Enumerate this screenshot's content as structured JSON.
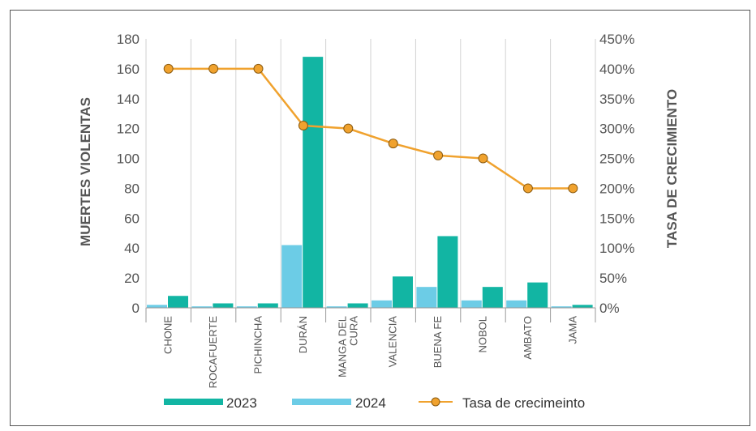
{
  "chart_data": {
    "type": "bar",
    "categories": [
      "CHONE",
      "ROCAFUERTE",
      "PICHINCHA",
      "DURÁN",
      "MANGA DEL CURA",
      "VALENCIA",
      "BUENA FE",
      "NOBOL",
      "AMBATO",
      "JAMA"
    ],
    "category_lines": [
      [
        "CHONE"
      ],
      [
        "ROCAFUERTE"
      ],
      [
        "PICHINCHA"
      ],
      [
        "DURÁN"
      ],
      [
        "MANGA DEL",
        "CURA"
      ],
      [
        "VALENCIA"
      ],
      [
        "BUENA FE"
      ],
      [
        "NOBOL"
      ],
      [
        "AMBATO"
      ],
      [
        "JAMA"
      ]
    ],
    "series": [
      {
        "name": "2023",
        "type": "bar",
        "axis": "left",
        "color": "#12b5a3",
        "values": [
          8,
          3,
          3,
          168,
          3,
          21,
          48,
          14,
          17,
          2
        ]
      },
      {
        "name": "2024",
        "type": "bar",
        "axis": "left",
        "color": "#6ccce6",
        "values": [
          2,
          1,
          1,
          42,
          1,
          5,
          14,
          5,
          5,
          1
        ]
      },
      {
        "name": "Tasa de crecimeinto",
        "type": "line",
        "axis": "right",
        "color": "#f0a22e",
        "marker_color": "#f0a22e",
        "values": [
          400,
          400,
          400,
          305,
          300,
          275,
          255,
          250,
          200,
          200
        ]
      }
    ],
    "ylabel": "MUERTES VIOLENTAS",
    "y2label": "TASA DE CRECIMIENTO",
    "ylim": [
      0,
      180
    ],
    "y2lim": [
      0,
      450
    ],
    "yticks": [
      "0",
      "20",
      "40",
      "60",
      "80",
      "100",
      "120",
      "140",
      "160",
      "180"
    ],
    "y2ticks": [
      "0%",
      "50%",
      "100%",
      "150%",
      "200%",
      "250%",
      "300%",
      "350%",
      "400%",
      "450%"
    ],
    "grid": "vertical",
    "legend_position": "bottom"
  }
}
